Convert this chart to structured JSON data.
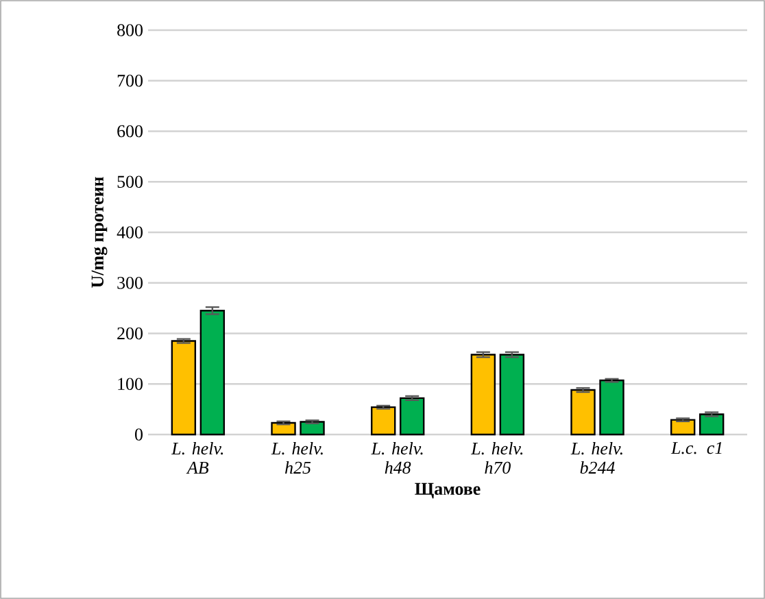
{
  "chart_data": {
    "type": "bar",
    "xlabel": "Щамове",
    "ylabel": "U/mg протеин",
    "categories": [
      "L. helv. AB",
      "L. helv. h25",
      "L. helv. h48",
      "L. helv. h70",
      "L. helv. b244",
      "L.c. c1"
    ],
    "series": [
      {
        "color": "#ffc000",
        "values": [
          185,
          23,
          54,
          158,
          88,
          29
        ],
        "errors": [
          4,
          3,
          3,
          5,
          4,
          3
        ]
      },
      {
        "color": "#00b050",
        "values": [
          245,
          25,
          72,
          158,
          107,
          40
        ],
        "errors": [
          7,
          3,
          4,
          5,
          3,
          4
        ]
      }
    ],
    "ylim": [
      0,
      800
    ],
    "yticks": [
      0,
      100,
      200,
      300,
      400,
      500,
      600,
      700,
      800
    ],
    "grid": "y"
  }
}
